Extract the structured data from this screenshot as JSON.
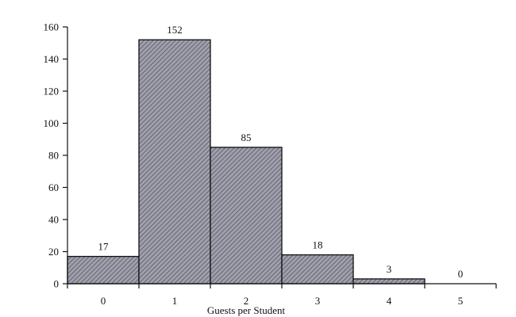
{
  "chart_data": {
    "type": "bar",
    "categories": [
      "0",
      "1",
      "2",
      "3",
      "4",
      "5"
    ],
    "values": [
      17,
      152,
      85,
      18,
      3,
      0
    ],
    "data_labels": [
      "17",
      "152",
      "85",
      "18",
      "3",
      "0"
    ],
    "title": "",
    "xlabel": "Guests per Student",
    "ylabel": "",
    "ylim": [
      0,
      160
    ],
    "yticks": [
      0,
      20,
      40,
      60,
      80,
      100,
      120,
      140,
      160
    ],
    "grid": false,
    "legend": "none",
    "bar_fill": "#9a9aa6",
    "hatch_color": "#4a4a58"
  }
}
